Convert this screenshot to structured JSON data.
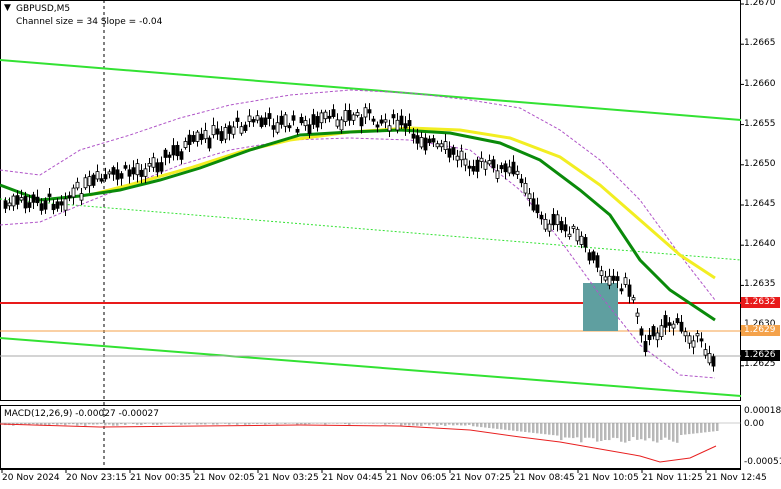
{
  "header": {
    "symbol": "GBPUSD,M5",
    "channel_text": "Channel size = 34 Slope = -0.04",
    "menu_arrow": "▼"
  },
  "price_axis": [
    "1.2670",
    "1.2665",
    "1.2660",
    "1.2655",
    "1.2650",
    "1.2645",
    "1.2640",
    "1.2635",
    "1.2630",
    "1.2625"
  ],
  "price_tags": {
    "level_red": "1.2632",
    "level_lower": "1.2629",
    "current": "1.2626"
  },
  "macd": {
    "label": "MACD(12,26,9) -0.00027 -0.00027",
    "axis": [
      "0.00018",
      "0.00",
      "-0.00051"
    ]
  },
  "time_axis": [
    "20 Nov 2024",
    "20 Nov 23:15",
    "21 Nov 00:35",
    "21 Nov 02:05",
    "21 Nov 03:25",
    "21 Nov 04:45",
    "21 Nov 06:05",
    "21 Nov 07:25",
    "21 Nov 08:45",
    "21 Nov 10:05",
    "21 Nov 11:25",
    "21 Nov 12:45"
  ],
  "colors": {
    "channel": "#33e233",
    "ma_fast": "#0a8a0a",
    "ma_slow": "#f2ee22",
    "red_level": "#e81a1a",
    "zone": "#5f9fa0",
    "bands": "#b055c8",
    "macd_signal": "#e82020",
    "macd_hist": "#b8b8b8"
  }
}
